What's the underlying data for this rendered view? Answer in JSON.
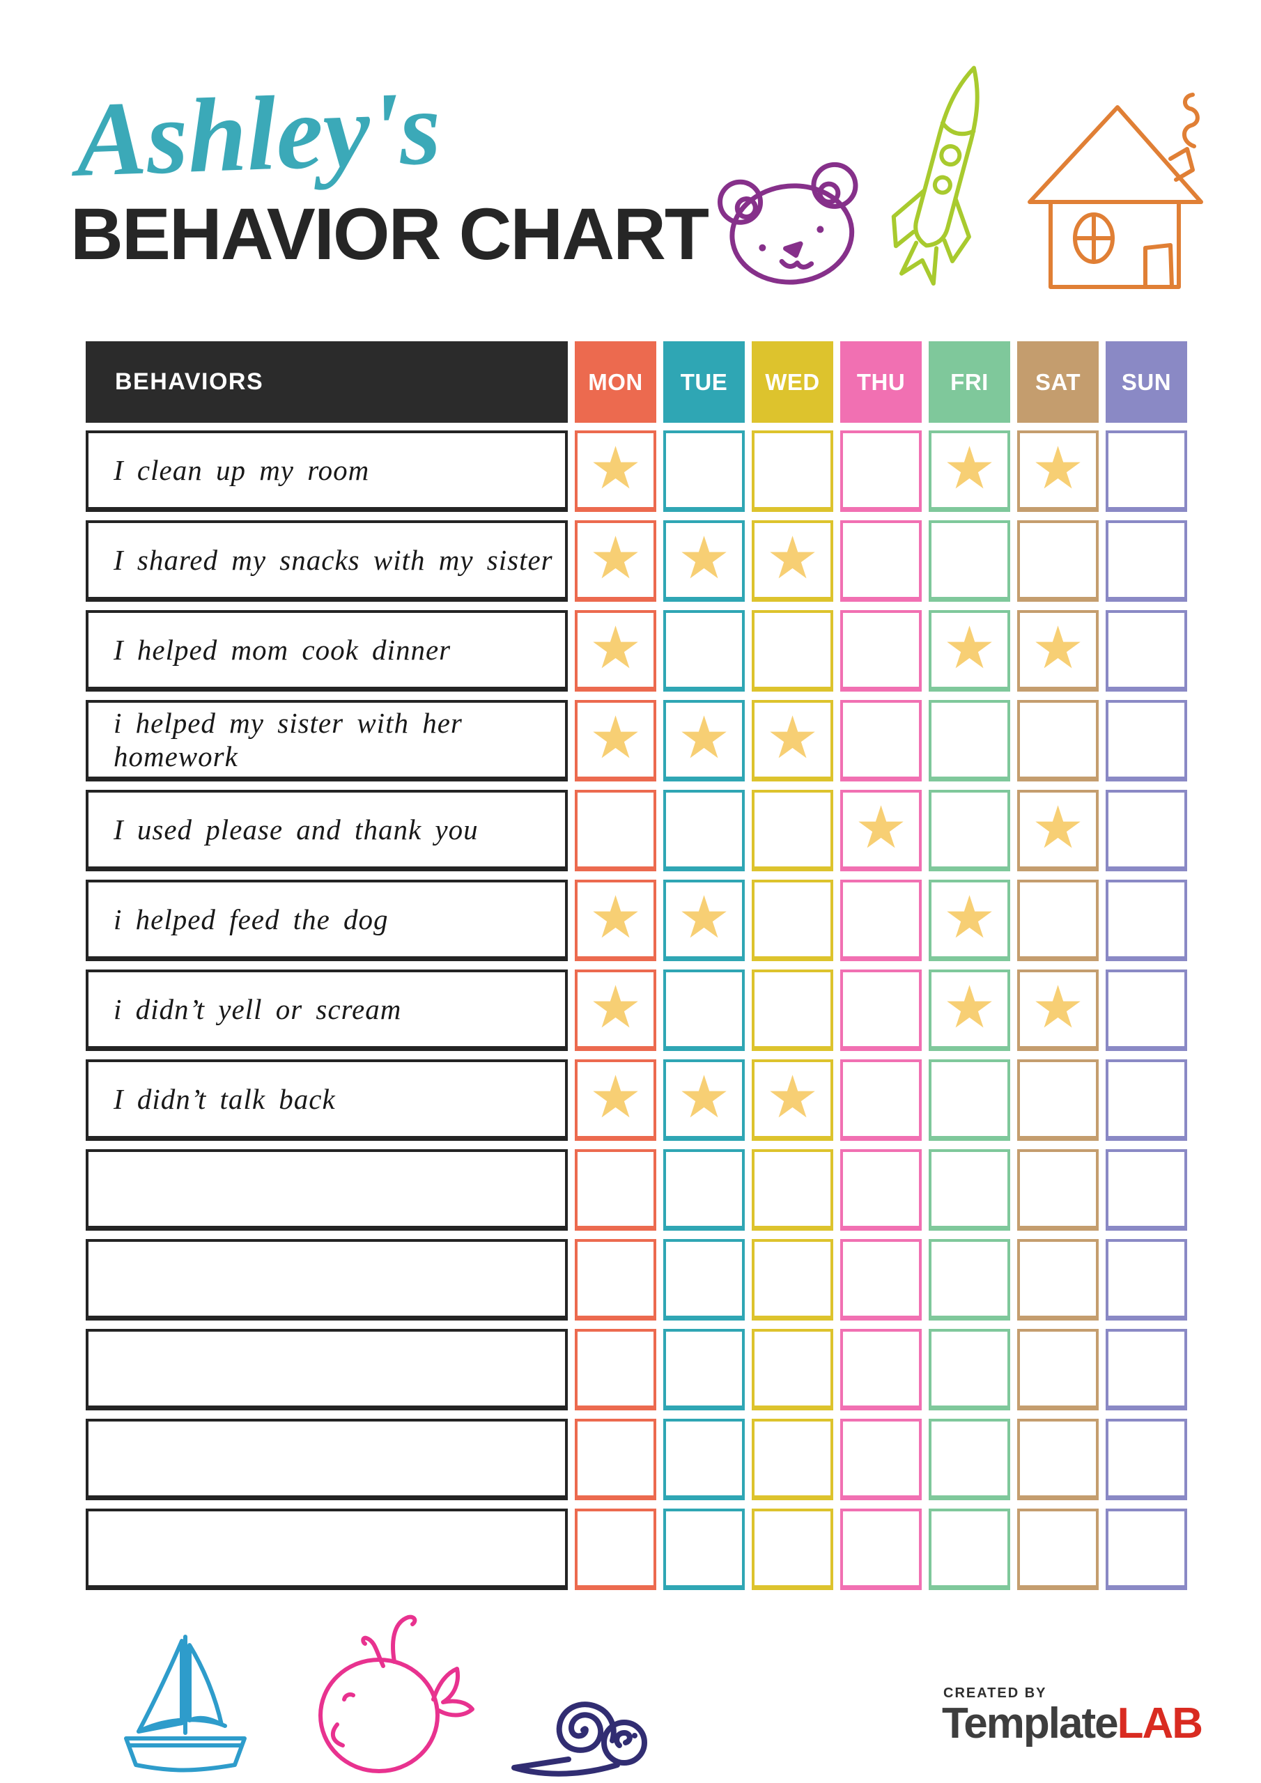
{
  "header": {
    "name": "Ashley's",
    "title": "BEHAVIOR CHART"
  },
  "doodles_top": [
    {
      "name": "bear",
      "color": "#86308A"
    },
    {
      "name": "rocket",
      "color": "#A8CA2E"
    },
    {
      "name": "house",
      "color": "#E07F35"
    }
  ],
  "table": {
    "behaviors_header": "BEHAVIORS",
    "header_bg": "#2B2B2B",
    "star_glyph": "★",
    "star_color": "#F7CF74",
    "days": [
      {
        "label": "MON",
        "color": "#EC6A4F"
      },
      {
        "label": "TUE",
        "color": "#2FA6B4"
      },
      {
        "label": "WED",
        "color": "#DDC32D"
      },
      {
        "label": "THU",
        "color": "#F170B2"
      },
      {
        "label": "FRI",
        "color": "#7FC89B"
      },
      {
        "label": "SAT",
        "color": "#C49D6E"
      },
      {
        "label": "SUN",
        "color": "#8A89C5"
      }
    ],
    "rows": [
      {
        "label": "I clean up my room",
        "stars": [
          "MON",
          "FRI",
          "SAT"
        ]
      },
      {
        "label": "I shared my snacks with my sister",
        "stars": [
          "MON",
          "TUE",
          "WED"
        ]
      },
      {
        "label": "I helped mom cook dinner",
        "stars": [
          "MON",
          "FRI",
          "SAT"
        ]
      },
      {
        "label": "i helped my sister with her homework",
        "stars": [
          "MON",
          "TUE",
          "WED"
        ]
      },
      {
        "label": "I used please and thank you",
        "stars": [
          "THU",
          "SAT"
        ]
      },
      {
        "label": "i helped feed the dog",
        "stars": [
          "MON",
          "TUE",
          "FRI"
        ]
      },
      {
        "label": "i didn’t yell or scream",
        "stars": [
          "MON",
          "FRI",
          "SAT"
        ]
      },
      {
        "label": "I didn’t talk back",
        "stars": [
          "MON",
          "TUE",
          "WED"
        ]
      },
      {
        "label": "",
        "stars": []
      },
      {
        "label": "",
        "stars": []
      },
      {
        "label": "",
        "stars": []
      },
      {
        "label": "",
        "stars": []
      },
      {
        "label": "",
        "stars": []
      }
    ]
  },
  "doodles_bottom": [
    {
      "name": "sailboat",
      "color": "#2E9CCB"
    },
    {
      "name": "whale",
      "color": "#E8328F"
    },
    {
      "name": "snail",
      "color": "#312D72"
    }
  ],
  "footer": {
    "created_by": "CREATED BY",
    "brand_name": "Template",
    "brand_suffix": "LAB",
    "brand_color": "#3E3E3E",
    "brand_suffix_color": "#D92B21"
  },
  "colors": {
    "title_script": "#3BA9B8",
    "title_main": "#262626",
    "row_border": "#242424"
  }
}
